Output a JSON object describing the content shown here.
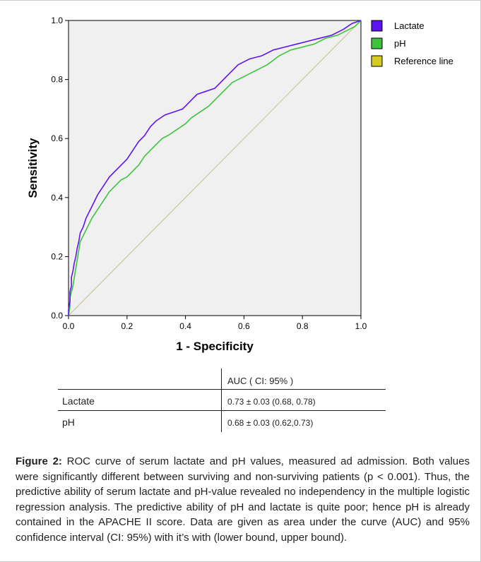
{
  "chart_data": {
    "type": "line",
    "xlabel": "1 - Specificity",
    "ylabel": "Sensitivity",
    "xlim": [
      0,
      1
    ],
    "ylim": [
      0,
      1
    ],
    "x_ticks": [
      "0.0",
      "0.2",
      "0.4",
      "0.6",
      "0.8",
      "1.0"
    ],
    "y_ticks": [
      "0.0",
      "0.2",
      "0.4",
      "0.6",
      "0.8",
      "1.0"
    ],
    "grid": false,
    "legend_position": "top-right",
    "series": [
      {
        "name": "Lactate",
        "color": "#5e13f5",
        "points": [
          [
            0,
            0
          ],
          [
            0,
            0.02
          ],
          [
            0.005,
            0.05
          ],
          [
            0.005,
            0.08
          ],
          [
            0.01,
            0.1
          ],
          [
            0.01,
            0.13
          ],
          [
            0.015,
            0.15
          ],
          [
            0.02,
            0.18
          ],
          [
            0.025,
            0.2
          ],
          [
            0.03,
            0.23
          ],
          [
            0.035,
            0.25
          ],
          [
            0.04,
            0.28
          ],
          [
            0.05,
            0.3
          ],
          [
            0.06,
            0.33
          ],
          [
            0.07,
            0.35
          ],
          [
            0.08,
            0.37
          ],
          [
            0.09,
            0.39
          ],
          [
            0.1,
            0.41
          ],
          [
            0.12,
            0.44
          ],
          [
            0.14,
            0.47
          ],
          [
            0.16,
            0.49
          ],
          [
            0.18,
            0.51
          ],
          [
            0.2,
            0.53
          ],
          [
            0.22,
            0.56
          ],
          [
            0.24,
            0.59
          ],
          [
            0.26,
            0.61
          ],
          [
            0.28,
            0.64
          ],
          [
            0.3,
            0.66
          ],
          [
            0.33,
            0.68
          ],
          [
            0.36,
            0.69
          ],
          [
            0.39,
            0.7
          ],
          [
            0.42,
            0.73
          ],
          [
            0.44,
            0.75
          ],
          [
            0.47,
            0.76
          ],
          [
            0.5,
            0.77
          ],
          [
            0.52,
            0.79
          ],
          [
            0.55,
            0.82
          ],
          [
            0.58,
            0.85
          ],
          [
            0.62,
            0.87
          ],
          [
            0.66,
            0.88
          ],
          [
            0.7,
            0.9
          ],
          [
            0.74,
            0.91
          ],
          [
            0.78,
            0.92
          ],
          [
            0.82,
            0.93
          ],
          [
            0.86,
            0.94
          ],
          [
            0.9,
            0.95
          ],
          [
            0.94,
            0.97
          ],
          [
            0.97,
            0.99
          ],
          [
            1,
            1
          ]
        ]
      },
      {
        "name": "pH",
        "color": "#3cc43c",
        "points": [
          [
            0,
            0
          ],
          [
            0.005,
            0.03
          ],
          [
            0.005,
            0.06
          ],
          [
            0.01,
            0.08
          ],
          [
            0.015,
            0.1
          ],
          [
            0.02,
            0.13
          ],
          [
            0.025,
            0.16
          ],
          [
            0.03,
            0.19
          ],
          [
            0.035,
            0.22
          ],
          [
            0.04,
            0.25
          ],
          [
            0.05,
            0.27
          ],
          [
            0.06,
            0.29
          ],
          [
            0.07,
            0.31
          ],
          [
            0.08,
            0.33
          ],
          [
            0.1,
            0.36
          ],
          [
            0.12,
            0.39
          ],
          [
            0.14,
            0.42
          ],
          [
            0.16,
            0.44
          ],
          [
            0.18,
            0.46
          ],
          [
            0.2,
            0.47
          ],
          [
            0.22,
            0.49
          ],
          [
            0.24,
            0.51
          ],
          [
            0.26,
            0.54
          ],
          [
            0.28,
            0.56
          ],
          [
            0.3,
            0.58
          ],
          [
            0.32,
            0.6
          ],
          [
            0.34,
            0.61
          ],
          [
            0.37,
            0.63
          ],
          [
            0.4,
            0.65
          ],
          [
            0.42,
            0.67
          ],
          [
            0.45,
            0.69
          ],
          [
            0.48,
            0.71
          ],
          [
            0.5,
            0.73
          ],
          [
            0.53,
            0.76
          ],
          [
            0.56,
            0.79
          ],
          [
            0.6,
            0.81
          ],
          [
            0.64,
            0.83
          ],
          [
            0.68,
            0.85
          ],
          [
            0.72,
            0.88
          ],
          [
            0.76,
            0.9
          ],
          [
            0.8,
            0.91
          ],
          [
            0.84,
            0.92
          ],
          [
            0.88,
            0.94
          ],
          [
            0.92,
            0.95
          ],
          [
            0.96,
            0.97
          ],
          [
            0.98,
            0.98
          ],
          [
            1,
            1
          ]
        ]
      },
      {
        "name": "Reference line",
        "color": "#cfc8a1",
        "legend_color": "#d4cc1e",
        "points": [
          [
            0,
            0
          ],
          [
            1,
            1
          ]
        ]
      }
    ]
  },
  "table": {
    "header_col": "",
    "header_auc": "AUC ( CI: 95% )",
    "rows": [
      {
        "label": "Lactate",
        "value": "0.73 ± 0.03 (0.68, 0.78)"
      },
      {
        "label": "pH",
        "value": "0.68 ± 0.03 (0.62,0.73)"
      }
    ]
  },
  "caption": {
    "prefix": "Figure 2:",
    "text": " ROC curve of serum lactate and pH values, measured ad admission. Both values were significantly different between surviving and non-surviving patients (p < 0.001). Thus, the predictive ability of serum lactate and pH-value revealed no independency in the multiple logistic regression analysis. The predictive ability of pH and lactate is quite poor; hence pH is already contained in the APACHE II score. Data are given as area under the curve (AUC) and 95% confidence interval (CI: 95%) with it’s with (lower bound, upper bound)."
  }
}
